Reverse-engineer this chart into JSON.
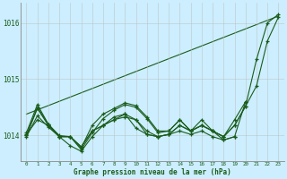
{
  "background_color": "#cceeff",
  "grid_color": "#bbbbbb",
  "line_color": "#1a5c1a",
  "text_color": "#1a5c1a",
  "xlabel": "Graphe pression niveau de la mer (hPa)",
  "xlim": [
    -0.5,
    23.5
  ],
  "ylim": [
    1013.55,
    1016.35
  ],
  "yticks": [
    1014,
    1015,
    1016
  ],
  "xticks": [
    0,
    1,
    2,
    3,
    4,
    5,
    6,
    7,
    8,
    9,
    10,
    11,
    12,
    13,
    14,
    15,
    16,
    17,
    18,
    19,
    20,
    21,
    22,
    23
  ],
  "series": [
    [
      1014.05,
      1014.55,
      1014.2,
      1013.98,
      1013.98,
      1013.75,
      1014.05,
      1014.3,
      1014.45,
      1014.55,
      1014.5,
      1014.3,
      1014.05,
      1014.08,
      1014.28,
      1014.08,
      1014.28,
      1014.08,
      1013.98,
      1014.28,
      1014.6,
      null,
      null,
      null
    ],
    [
      1013.98,
      1014.35,
      1014.15,
      1013.98,
      1013.82,
      1013.72,
      1013.98,
      1014.18,
      1014.28,
      1014.38,
      1014.28,
      1014.08,
      1013.98,
      1014.02,
      1014.08,
      1014.02,
      1014.08,
      1013.98,
      1013.92,
      1013.98,
      null,
      null,
      null,
      null
    ],
    [
      1014.0,
      1014.5,
      1014.2,
      1014.0,
      1013.98,
      1013.78,
      1014.18,
      1014.38,
      1014.48,
      1014.58,
      1014.53,
      1014.33,
      1014.08,
      1014.08,
      1014.28,
      1014.08,
      1014.18,
      1014.08,
      1013.92,
      1013.98,
      1014.6,
      null,
      null,
      null
    ],
    [
      1014.02,
      1014.28,
      1014.18,
      1013.98,
      1013.98,
      1013.8,
      1014.08,
      1014.18,
      1014.33,
      1014.38,
      1014.13,
      1014.02,
      1013.98,
      1014.02,
      1014.18,
      1014.08,
      1014.18,
      1014.08,
      1013.98,
      1014.18,
      1014.52,
      1015.35,
      1016.0,
      1016.15
    ],
    [
      1014.0,
      1014.48,
      1014.18,
      1013.98,
      1013.98,
      1013.8,
      1014.08,
      1014.18,
      1014.28,
      1014.33,
      1014.28,
      1014.02,
      1013.98,
      1014.02,
      1014.18,
      1014.08,
      1014.18,
      1014.08,
      1013.98,
      1014.18,
      1014.52,
      1014.88,
      1015.68,
      1016.1
    ]
  ],
  "line_straight": [
    1014.38,
    1016.12
  ]
}
